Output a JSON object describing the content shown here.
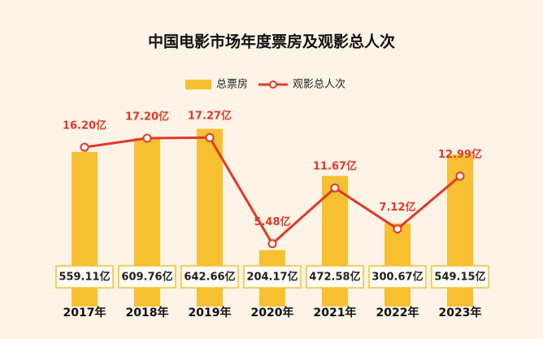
{
  "chart_data": {
    "type": "bar-line",
    "title": "中国电影市场年度票房及观影总人次",
    "categories": [
      "2017年",
      "2018年",
      "2019年",
      "2020年",
      "2021年",
      "2022年",
      "2023年"
    ],
    "series": [
      {
        "name": "总票房",
        "type": "bar",
        "color": "#f6c030",
        "values": [
          559.11,
          609.76,
          642.66,
          204.17,
          472.58,
          300.67,
          549.15
        ],
        "value_labels": [
          "559.11亿",
          "609.76亿",
          "642.66亿",
          "204.17亿",
          "472.58亿",
          "300.67亿",
          "549.15亿"
        ]
      },
      {
        "name": "观影总人次",
        "type": "line",
        "axis": "y2",
        "color": "#e0392b",
        "values": [
          16.2,
          17.2,
          17.27,
          5.48,
          11.67,
          7.12,
          12.99
        ],
        "value_labels": [
          "16.20亿",
          "17.20亿",
          "17.27亿",
          "5.48亿",
          "11.67亿",
          "7.12亿",
          "12.99亿"
        ]
      }
    ],
    "ylim": [
      0,
      700
    ],
    "y2lim": [
      -1.5,
      20
    ]
  }
}
